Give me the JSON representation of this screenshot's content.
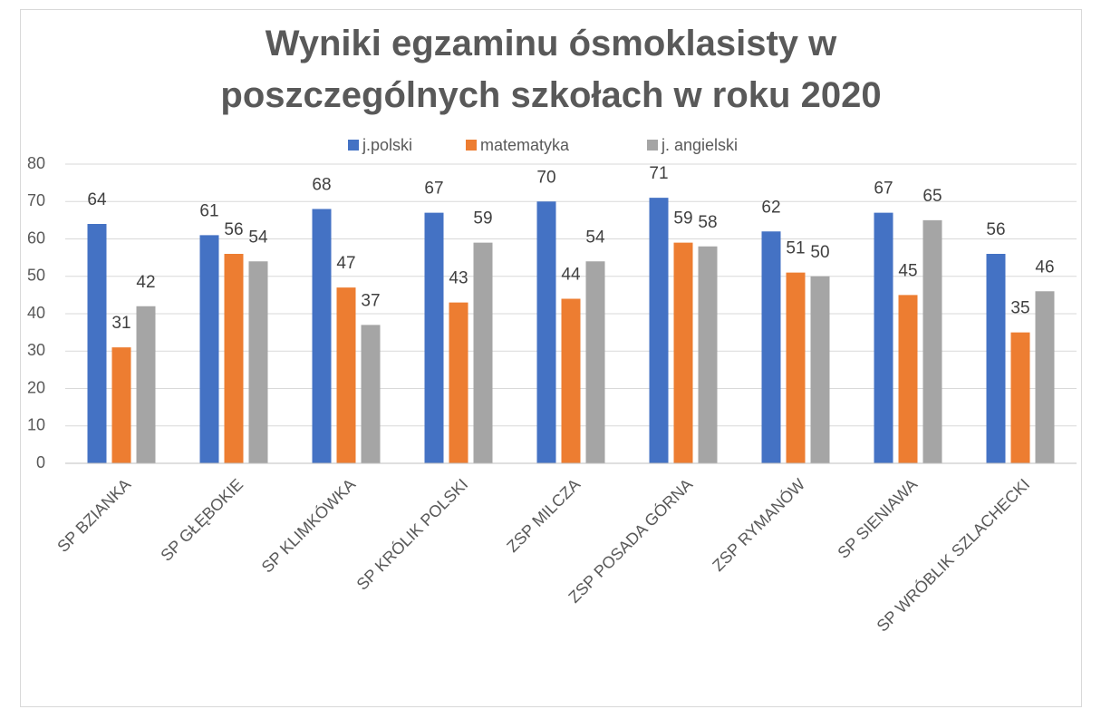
{
  "chart_data": {
    "type": "bar",
    "title": "Wyniki egzaminu ósmoklasisty w poszczególnych szkołach w roku 2020",
    "categories": [
      "SP BZIANKA",
      "SP GŁĘBOKIE",
      "SP KLIMKÓWKA",
      "SP KRÓLIK POLSKI",
      "ZSP MILCZA",
      "ZSP POSADA GÓRNA",
      "ZSP RYMANÓW",
      "SP SIENIAWA",
      "SP WRÓBLIK SZLACHECKI"
    ],
    "series": [
      {
        "name": "j.polski",
        "color": "#4472c4",
        "values": [
          64,
          61,
          68,
          67,
          70,
          71,
          62,
          67,
          56
        ]
      },
      {
        "name": "matematyka",
        "color": "#ed7d31",
        "values": [
          31,
          56,
          47,
          43,
          44,
          59,
          51,
          45,
          35
        ]
      },
      {
        "name": "j. angielski",
        "color": "#a5a5a5",
        "values": [
          42,
          54,
          37,
          59,
          54,
          58,
          50,
          65,
          46
        ]
      }
    ],
    "ylim": [
      0,
      80
    ],
    "yticks": [
      0,
      10,
      20,
      30,
      40,
      50,
      60,
      70,
      80
    ],
    "grid": true,
    "legend": "top"
  }
}
